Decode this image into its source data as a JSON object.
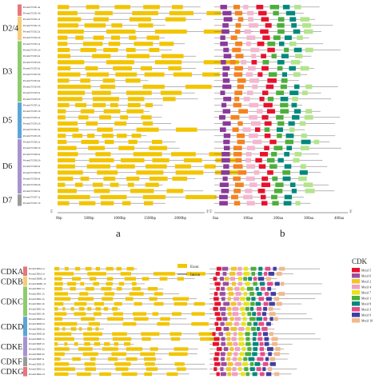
{
  "colors": {
    "exon": "#f2c500",
    "intron": "#6e6e6e",
    "group_bars": [
      "#e8767b",
      "#f5cc77",
      "#8fcb6d",
      "#5ba5d8",
      "#a893cf",
      "#9a9a9a",
      "#e8767b",
      "#f5cc77",
      "#8fcb6d",
      "#5ba5d8",
      "#a893cf"
    ]
  },
  "panel_a": {
    "label": "a",
    "axis_start_tick": "5'",
    "axis_end_tick": "3'",
    "ticks": [
      "0bp",
      "500bp",
      "1000bp",
      "1500bp",
      "2000bp"
    ],
    "groups": [
      {
        "name": "",
        "count": 2
      },
      {
        "name": "D2/4",
        "count": 4
      },
      {
        "name": "D3",
        "count": 10
      },
      {
        "name": "D5",
        "count": 6
      },
      {
        "name": "D6",
        "count": 9
      },
      {
        "name": "D7",
        "count": 2
      }
    ],
    "genes": [
      "PotomCYCD1.4a",
      "PotomCYCD1.4b",
      "PotomCYCD2.1a",
      "PotomCYCD2.1b",
      "PotomCYCD2.2a",
      "PotomCYCD2.2b",
      "PotomCYCD3.1a",
      "PotomCYCD3.1b",
      "PotomCYCD3.2a",
      "PotomCYCD3.2b",
      "PotomCYCD3.3a",
      "PotomCYCD3.3b",
      "PotomCYCD3.4a",
      "PotomCYCD3.4b",
      "PotomCYCD3.5a",
      "PotomCYCD3.5b",
      "PotomCYCD5.1a",
      "PotomCYCD5.1b",
      "PotomCYCD5.2a",
      "PotomCYCD5.2b",
      "PotomCYCD5.3a",
      "PotomCYCD5.3b",
      "PotomCYCD6.1a",
      "PotomCYCD6.1b",
      "PotomCYCD6.2a",
      "PotomCYCD6.2b",
      "PotomCYCD6.3a",
      "PotomCYCD6.3b",
      "PotomCYCD6.4a",
      "PotomCYCD6.4b",
      "PotomCYCD6.5a",
      "PotomCYCD7.1a",
      "PotomCYCD7.1b"
    ]
  },
  "panel_b": {
    "label": "b",
    "axis_start_tick": "5'",
    "axis_end_tick": "3'",
    "ticks": [
      "0aa",
      "100aa",
      "200aa",
      "300aa",
      "400aa"
    ]
  },
  "panel_c": {
    "legend_exon": "Exon",
    "legend_intron": "Intron",
    "groups": [
      {
        "name": "CDKA",
        "count": 2
      },
      {
        "name": "CDKB",
        "count": 2
      },
      {
        "name": "CDKC",
        "count": 6
      },
      {
        "name": "CDKD",
        "count": 4
      },
      {
        "name": "CDKE",
        "count": 4
      },
      {
        "name": "CDKF",
        "count": 2
      },
      {
        "name": "CDKG",
        "count": 2
      }
    ],
    "genes": [
      "PotomCDKA.1a",
      "PotomCDKA.1b",
      "PotomCDKB1.1a",
      "PotomCDKB1.1b",
      "PotomCDKC.1a",
      "PotomCDKC.1b",
      "PotomCDKC.2a",
      "PotomCDKC.2b",
      "PotomCDKC.3a",
      "PotomCDKC.4b",
      "PotomCDKD.1a",
      "PotomCDKD.1b",
      "PotomCDKD.2a",
      "PotomCDKD.2b",
      "PotomCDKE.1a",
      "PotomCDKE.1b",
      "PotomCDKE.2a",
      "PotomCDKE.2b",
      "PotomCDKF.1a",
      "PotomCDKF.1b",
      "PotomCDKG.1a",
      "PotomCDKG.1b"
    ]
  },
  "cdk_legend": {
    "title": "CDK",
    "motifs": [
      {
        "name": "Motif 5",
        "color": "#e8112d"
      },
      {
        "name": "Motif 6",
        "color": "#9b4fa0"
      },
      {
        "name": "Motif 2",
        "color": "#f0c52a"
      },
      {
        "name": "Motif 4",
        "color": "#f2a0c0"
      },
      {
        "name": "Motif 7",
        "color": "#e9e21c"
      },
      {
        "name": "Motif 1",
        "color": "#4caf3a"
      },
      {
        "name": "Motif 8",
        "color": "#00897b"
      },
      {
        "name": "Motif 3",
        "color": "#e84a8b"
      },
      {
        "name": "Motif 9",
        "color": "#3f3fa0"
      },
      {
        "name": "Motif 10",
        "color": "#f0b98d"
      }
    ]
  },
  "cycd_motif_colors": [
    "#8a3a9a",
    "#f58220",
    "#f4b8d0",
    "#e8112d",
    "#4caf3a",
    "#00897b",
    "#b3e58c",
    "#3f3fa0"
  ]
}
